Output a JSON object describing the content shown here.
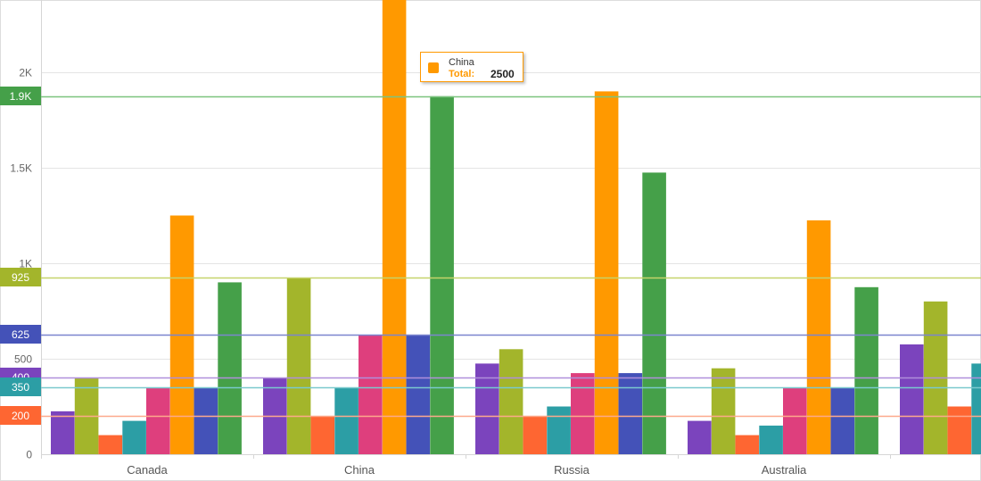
{
  "chart_data": {
    "type": "bar",
    "categories": [
      "Canada",
      "China",
      "Russia",
      "Australia",
      ""
    ],
    "series": [
      {
        "color": "#7b44bd",
        "values": [
          225,
          400,
          475,
          175,
          575
        ]
      },
      {
        "color": "#a3b52b",
        "values": [
          400,
          925,
          550,
          450,
          800
        ]
      },
      {
        "color": "#fe6632",
        "values": [
          100,
          200,
          200,
          100,
          250
        ]
      },
      {
        "color": "#2c9ea5",
        "values": [
          175,
          350,
          250,
          150,
          475
        ]
      },
      {
        "color": "#de3f7d",
        "values": [
          350,
          625,
          425,
          350,
          null
        ]
      },
      {
        "color": "#ff9900",
        "values": [
          1250,
          2500,
          1900,
          1225,
          null
        ]
      },
      {
        "color": "#4452b8",
        "values": [
          350,
          625,
          425,
          350,
          null
        ]
      },
      {
        "color": "#45a049",
        "values": [
          900,
          1875,
          1475,
          875,
          null
        ]
      }
    ],
    "y_ticks": [
      {
        "value": 0,
        "label": "0"
      },
      {
        "value": 500,
        "label": "500"
      },
      {
        "value": 1000,
        "label": "1K"
      },
      {
        "value": 1500,
        "label": "1.5K"
      },
      {
        "value": 2000,
        "label": "2K"
      }
    ],
    "ylim": [
      0,
      2375
    ],
    "grid": true,
    "constant_lines": [
      {
        "value": 1875,
        "label": "1.9K",
        "color": "#45a049",
        "line_color": "#7cc47f"
      },
      {
        "value": 925,
        "label": "925",
        "color": "#a3b52b",
        "line_color": "#c6d36b"
      },
      {
        "value": 625,
        "label": "625",
        "color": "#4452b8",
        "line_color": "#7b85cf"
      },
      {
        "value": 400,
        "label": "400",
        "color": "#7b44bd",
        "line_color": "#b08fdb"
      },
      {
        "value": 350,
        "label": "350",
        "color": "#2c9ea5",
        "line_color": "#7ac9ce"
      },
      {
        "value": 200,
        "label": "200",
        "color": "#fe6632",
        "line_color": "#fda98c"
      }
    ],
    "tooltip": {
      "series": "China",
      "label": "Total:",
      "value": "2500",
      "color": "#ff9900"
    }
  }
}
